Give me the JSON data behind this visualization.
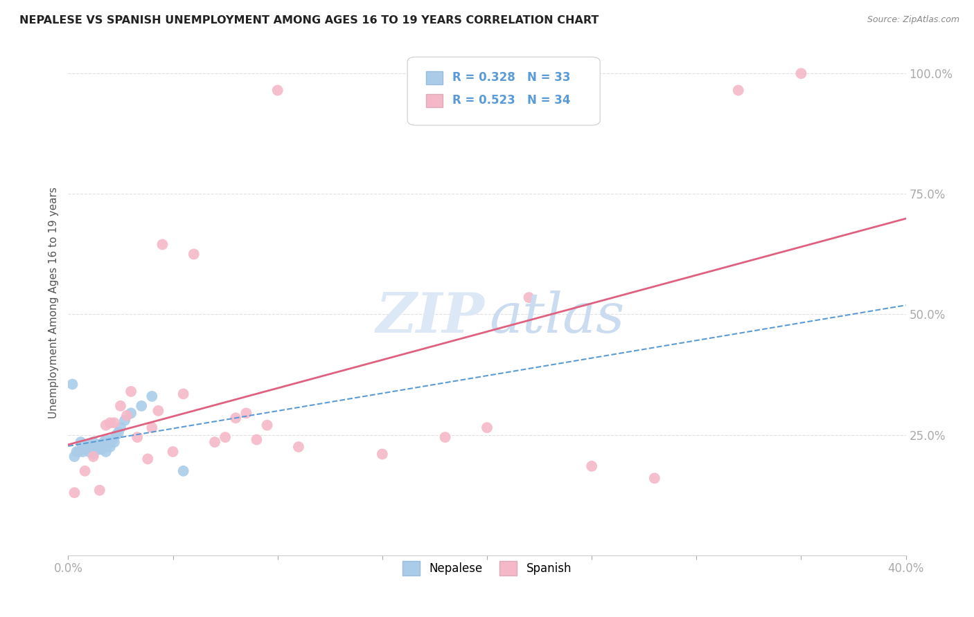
{
  "title": "NEPALESE VS SPANISH UNEMPLOYMENT AMONG AGES 16 TO 19 YEARS CORRELATION CHART",
  "source": "Source: ZipAtlas.com",
  "ylabel": "Unemployment Among Ages 16 to 19 years",
  "xlim": [
    0.0,
    0.4
  ],
  "ylim": [
    0.0,
    1.05
  ],
  "nepalese_R": 0.328,
  "nepalese_N": 33,
  "spanish_R": 0.523,
  "spanish_N": 34,
  "background_color": "#ffffff",
  "grid_color": "#e0e0e0",
  "nepalese_color": "#aacce8",
  "nepalese_line_color": "#5b9bd5",
  "spanish_color": "#f5b8c8",
  "spanish_line_color": "#e06080",
  "tick_color": "#5b9bd5",
  "nepalese_x": [
    0.002,
    0.003,
    0.004,
    0.005,
    0.006,
    0.007,
    0.008,
    0.009,
    0.01,
    0.01,
    0.011,
    0.012,
    0.012,
    0.013,
    0.014,
    0.015,
    0.015,
    0.016,
    0.017,
    0.018,
    0.018,
    0.019,
    0.02,
    0.021,
    0.022,
    0.023,
    0.024,
    0.025,
    0.027,
    0.03,
    0.035,
    0.04,
    0.055
  ],
  "nepalese_y": [
    0.355,
    0.205,
    0.215,
    0.215,
    0.235,
    0.215,
    0.22,
    0.22,
    0.215,
    0.23,
    0.22,
    0.21,
    0.235,
    0.225,
    0.225,
    0.22,
    0.23,
    0.22,
    0.235,
    0.215,
    0.24,
    0.23,
    0.225,
    0.24,
    0.235,
    0.25,
    0.255,
    0.265,
    0.28,
    0.295,
    0.31,
    0.33,
    0.175
  ],
  "spanish_x": [
    0.003,
    0.008,
    0.012,
    0.015,
    0.018,
    0.02,
    0.022,
    0.025,
    0.028,
    0.03,
    0.033,
    0.038,
    0.04,
    0.043,
    0.045,
    0.05,
    0.055,
    0.06,
    0.07,
    0.075,
    0.08,
    0.085,
    0.09,
    0.095,
    0.1,
    0.11,
    0.15,
    0.18,
    0.2,
    0.22,
    0.25,
    0.28,
    0.32,
    0.35
  ],
  "spanish_y": [
    0.13,
    0.175,
    0.205,
    0.135,
    0.27,
    0.275,
    0.275,
    0.31,
    0.29,
    0.34,
    0.245,
    0.2,
    0.265,
    0.3,
    0.645,
    0.215,
    0.335,
    0.625,
    0.235,
    0.245,
    0.285,
    0.295,
    0.24,
    0.27,
    0.965,
    0.225,
    0.21,
    0.245,
    0.265,
    0.535,
    0.185,
    0.16,
    0.965,
    1.0
  ],
  "nepalese_trend_x0": 0.0,
  "nepalese_trend_x1": 0.4,
  "spanish_trend_x0": 0.0,
  "spanish_trend_x1": 0.4
}
